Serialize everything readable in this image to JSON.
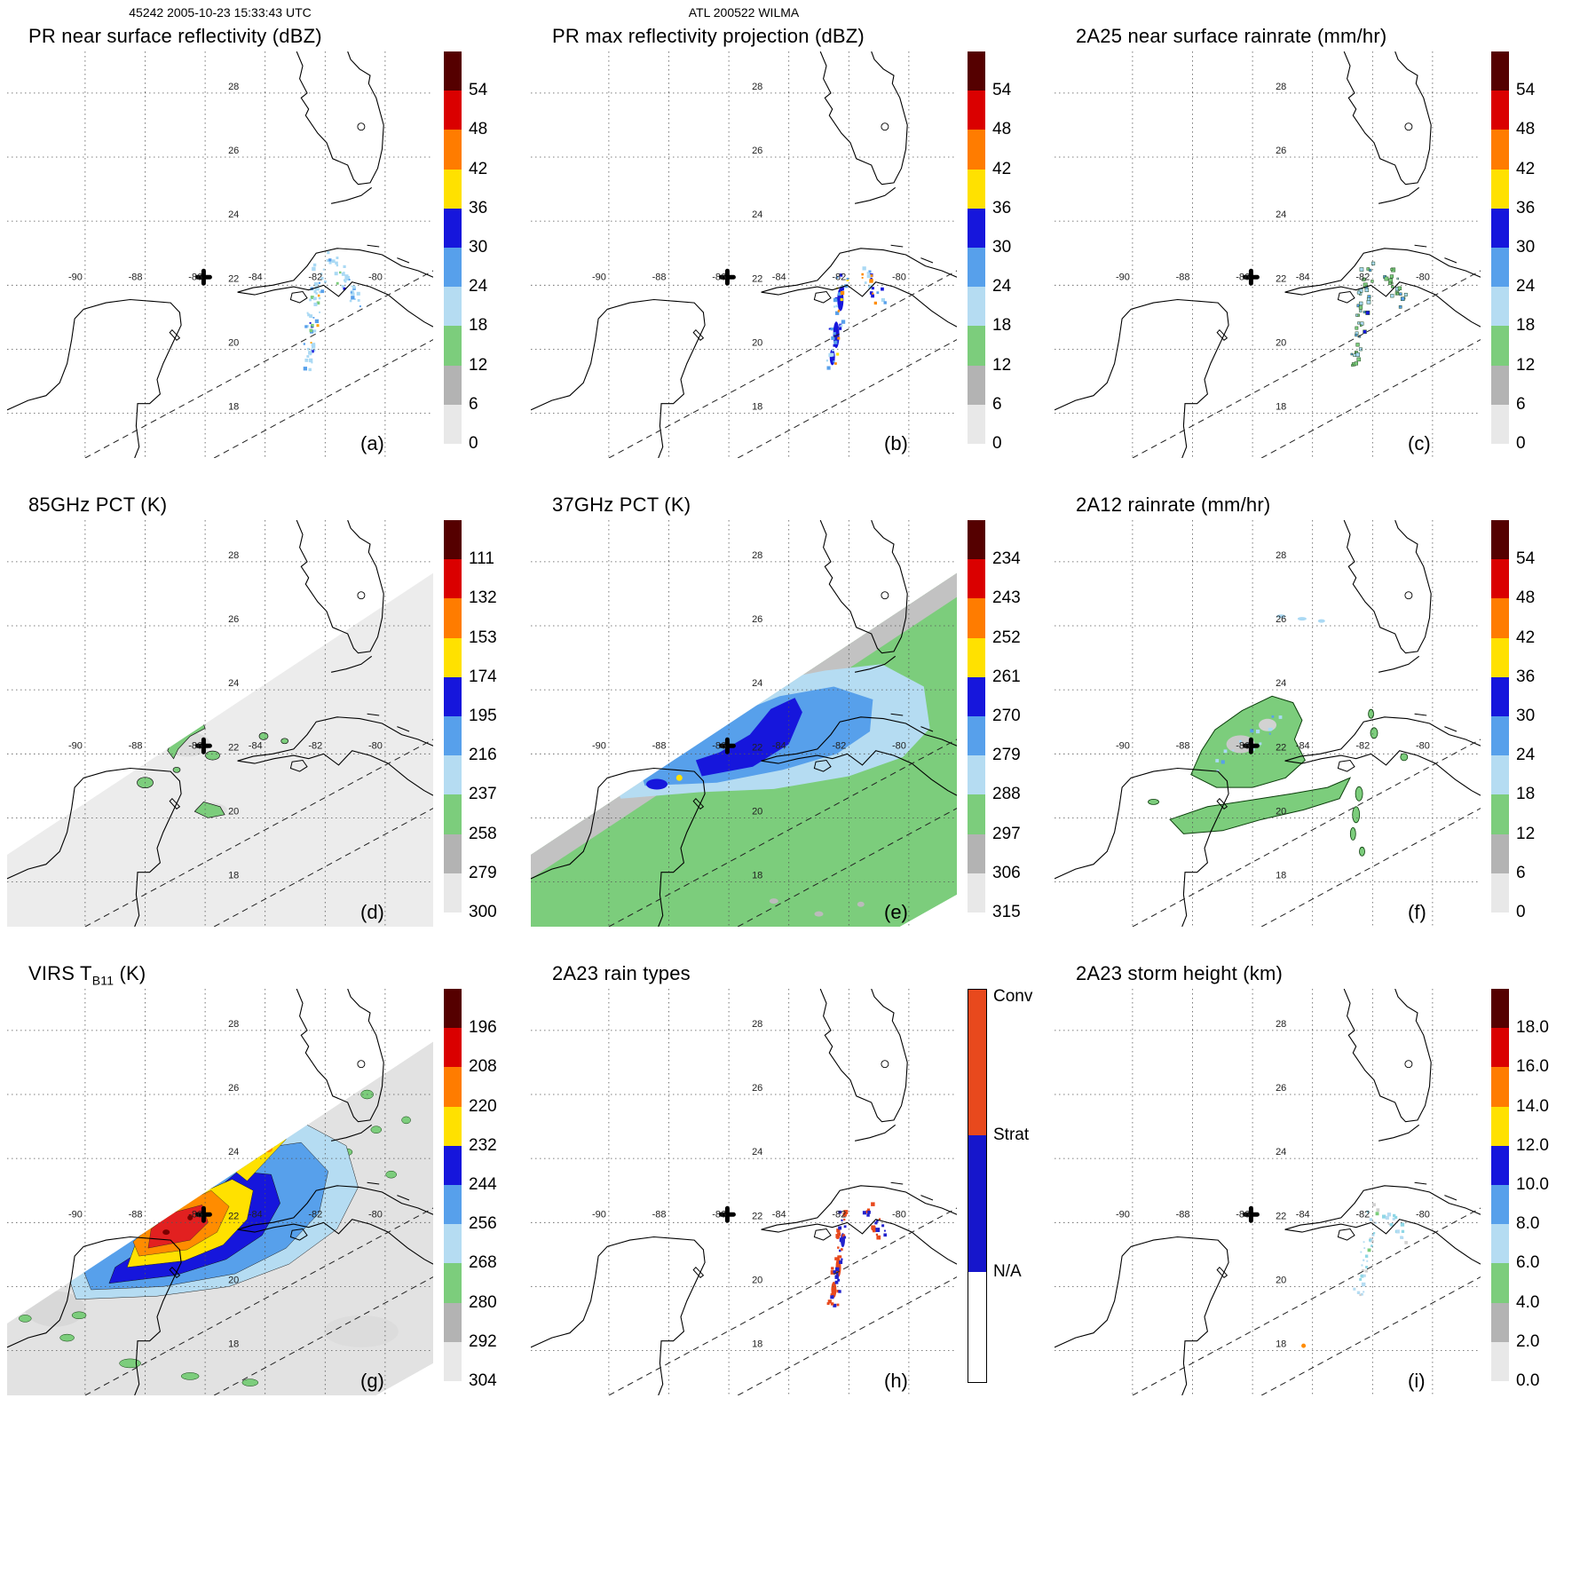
{
  "header": {
    "scan": "45242 2005-10-23 15:33:43 UTC",
    "storm": "ATL 200522 WILMA"
  },
  "map": {
    "lon_labels": [
      "-90",
      "-88",
      "-86",
      "-84",
      "-82",
      "-80"
    ],
    "grid_lons": [
      -90,
      -88,
      -86,
      -84,
      -82,
      -80
    ],
    "lat_labels": [
      "28",
      "26",
      "24",
      "22",
      "20",
      "18"
    ],
    "grid_lats": [
      28,
      26,
      24,
      22,
      20,
      18
    ],
    "storm_center": {
      "lon": -86.05,
      "lat": 22.25
    },
    "extent": {
      "lon_min": -92.6,
      "lon_max": -78.4,
      "lat_min": 16.6,
      "lat_max": 29.3
    }
  },
  "palette": {
    "scale_top_to_bottom": [
      "#550000",
      "#da0000",
      "#ff7c00",
      "#ffe100",
      "#1616dc",
      "#57a0eb",
      "#b5dcf2",
      "#7ccd7c",
      "#b3b3b3",
      "#e8e8e8"
    ],
    "conv": "#e8491d",
    "strat": "#1616cc",
    "na": "#ffffff"
  },
  "panels": [
    {
      "letter": "(a)",
      "title": "PR near surface reflectivity (dBZ)",
      "colorbar": {
        "type": "scale",
        "ticks": [
          "54",
          "48",
          "42",
          "36",
          "30",
          "24",
          "18",
          "12",
          "6",
          "0"
        ],
        "colors": [
          "#550000",
          "#da0000",
          "#ff7c00",
          "#ffe100",
          "#1616dc",
          "#57a0eb",
          "#b5dcf2",
          "#7ccd7c",
          "#b3b3b3",
          "#e8e8e8"
        ]
      }
    },
    {
      "letter": "(b)",
      "title": "PR max reflectivity projection (dBZ)",
      "colorbar": {
        "type": "scale",
        "ticks": [
          "54",
          "48",
          "42",
          "36",
          "30",
          "24",
          "18",
          "12",
          "6",
          "0"
        ],
        "colors": [
          "#550000",
          "#da0000",
          "#ff7c00",
          "#ffe100",
          "#1616dc",
          "#57a0eb",
          "#b5dcf2",
          "#7ccd7c",
          "#b3b3b3",
          "#e8e8e8"
        ]
      }
    },
    {
      "letter": "(c)",
      "title": "2A25 near surface rainrate (mm/hr)",
      "colorbar": {
        "type": "scale",
        "ticks": [
          "54",
          "48",
          "42",
          "36",
          "30",
          "24",
          "18",
          "12",
          "6",
          "0"
        ],
        "colors": [
          "#550000",
          "#da0000",
          "#ff7c00",
          "#ffe100",
          "#1616dc",
          "#57a0eb",
          "#b5dcf2",
          "#7ccd7c",
          "#b3b3b3",
          "#e8e8e8"
        ]
      }
    },
    {
      "letter": "(d)",
      "title": "85GHz PCT (K)",
      "colorbar": {
        "type": "scale",
        "ticks": [
          "111",
          "132",
          "153",
          "174",
          "195",
          "216",
          "237",
          "258",
          "279",
          "300"
        ],
        "colors": [
          "#550000",
          "#da0000",
          "#ff7c00",
          "#ffe100",
          "#1616dc",
          "#57a0eb",
          "#b5dcf2",
          "#7ccd7c",
          "#b3b3b3",
          "#e8e8e8"
        ]
      }
    },
    {
      "letter": "(e)",
      "title": "37GHz PCT (K)",
      "colorbar": {
        "type": "scale",
        "ticks": [
          "234",
          "243",
          "252",
          "261",
          "270",
          "279",
          "288",
          "297",
          "306",
          "315"
        ],
        "colors": [
          "#550000",
          "#da0000",
          "#ff7c00",
          "#ffe100",
          "#1616dc",
          "#57a0eb",
          "#b5dcf2",
          "#7ccd7c",
          "#b3b3b3",
          "#e8e8e8"
        ]
      }
    },
    {
      "letter": "(f)",
      "title": "2A12 rainrate (mm/hr)",
      "colorbar": {
        "type": "scale",
        "ticks": [
          "54",
          "48",
          "42",
          "36",
          "30",
          "24",
          "18",
          "12",
          "6",
          "0"
        ],
        "colors": [
          "#550000",
          "#da0000",
          "#ff7c00",
          "#ffe100",
          "#1616dc",
          "#57a0eb",
          "#b5dcf2",
          "#7ccd7c",
          "#b3b3b3",
          "#e8e8e8"
        ]
      }
    },
    {
      "letter": "(g)",
      "title": "VIRS TB11 (K)",
      "title_prefix": "VIRS T",
      "title_sub": "B11",
      "title_suffix": " (K)",
      "colorbar": {
        "type": "scale",
        "ticks": [
          "196",
          "208",
          "220",
          "232",
          "244",
          "256",
          "268",
          "280",
          "292",
          "304"
        ],
        "colors": [
          "#550000",
          "#da0000",
          "#ff7c00",
          "#ffe100",
          "#1616dc",
          "#57a0eb",
          "#b5dcf2",
          "#7ccd7c",
          "#b3b3b3",
          "#e8e8e8"
        ]
      }
    },
    {
      "letter": "(h)",
      "title": "2A23 rain types",
      "colorbar": {
        "type": "categories",
        "segments": [
          {
            "label": "Conv",
            "color": "#e8491d",
            "frac": 0.37
          },
          {
            "label": "Strat",
            "color": "#1616cc",
            "frac": 0.35
          },
          {
            "label": "N/A",
            "color": "#ffffff",
            "frac": 0.28
          }
        ]
      }
    },
    {
      "letter": "(i)",
      "title": "2A23 storm height (km)",
      "colorbar": {
        "type": "scale",
        "ticks": [
          "18.0",
          "16.0",
          "14.0",
          "12.0",
          "10.0",
          "8.0",
          "6.0",
          "4.0",
          "2.0",
          "0.0"
        ],
        "colors": [
          "#550000",
          "#da0000",
          "#ff7c00",
          "#ffe100",
          "#1616dc",
          "#57a0eb",
          "#b5dcf2",
          "#7ccd7c",
          "#b3b3b3",
          "#e8e8e8"
        ]
      }
    }
  ],
  "chart_data": [
    {
      "panel": "a",
      "type": "heatmap",
      "title": "PR near surface reflectivity",
      "units": "dBZ",
      "colorbar_ticks": [
        54,
        48,
        42,
        36,
        30,
        24,
        18,
        12,
        6,
        0
      ],
      "extent": {
        "lon": [
          -92.6,
          -78.4
        ],
        "lat": [
          16.6,
          29.3
        ]
      },
      "notes": "Scattered PR echoes, mostly 18-30 dBZ, in a broken rainband near 81-83W / 19-22.5N over and south of western Cuba; storm center cross at about 86W, 22.3N."
    },
    {
      "panel": "b",
      "type": "heatmap",
      "title": "PR max reflectivity projection",
      "units": "dBZ",
      "colorbar_ticks": [
        54,
        48,
        42,
        36,
        30,
        24,
        18,
        12,
        6,
        0
      ],
      "notes": "Same band as (a) with higher column-max values: elongated 30-40 dBZ blue streaks plus isolated 40+ dBZ (orange) cells near the Cuban coast."
    },
    {
      "panel": "c",
      "type": "heatmap",
      "title": "2A25 near surface rainrate",
      "units": "mm/hr",
      "colorbar_ticks": [
        54,
        48,
        42,
        36,
        30,
        24,
        18,
        12,
        6,
        0
      ],
      "notes": "Light near-surface rain rates (mostly under 12 mm/hr, green/pale blue) along the same rainband."
    },
    {
      "panel": "d",
      "type": "heatmap",
      "title": "85GHz PCT",
      "units": "K",
      "colorbar_ticks": [
        111,
        132,
        153,
        174,
        195,
        216,
        237,
        258,
        279,
        300
      ],
      "notes": "Wide TMI swath of ~260-300 K (light gray) with depressed PCT arcs (~237-258 K, green) curving around the storm center northeast of the Yucatan."
    },
    {
      "panel": "e",
      "type": "heatmap",
      "title": "37GHz PCT",
      "units": "K",
      "colorbar_ticks": [
        234,
        243,
        252,
        261,
        270,
        279,
        288,
        297,
        306,
        315
      ],
      "notes": "Warm ~288 K background (green) with a broad ring of lowered PCT (~261-279 K, blue shades) around the center; gray limb band along the swath edge; one yellow pixel near 87.7W / 21.3N."
    },
    {
      "panel": "f",
      "type": "heatmap",
      "title": "2A12 rainrate",
      "units": "mm/hr",
      "colorbar_ticks": [
        54,
        48,
        42,
        36,
        30,
        24,
        18,
        12,
        6,
        0
      ],
      "notes": "Broad light-rain shield (green, ~1-6 mm/hr) northeast of the Yucatan and in an elongated band south of Cuba, with small green cells along 82.5W and pale blue dashes near 26N."
    },
    {
      "panel": "g",
      "type": "heatmap",
      "title": "VIRS TB11",
      "units": "K",
      "colorbar_ticks": [
        196,
        208,
        220,
        232,
        244,
        256,
        268,
        280,
        292,
        304
      ],
      "notes": "Large cold cloud shield: coldest tops ~196-220 K (dark red/red/orange) around the center, yellow ring ~232 K, extensive 244-268 K (blue/green) anvil extending northeast over Cuba and Florida."
    },
    {
      "panel": "h",
      "type": "heatmap",
      "title": "2A23 rain types",
      "categories": [
        "Conv",
        "Strat",
        "N/A"
      ],
      "notes": "Along the PR swath, convective (red) cells embedded in stratiform (blue) rain within the Cuba rainband near 81-83W."
    },
    {
      "panel": "i",
      "type": "heatmap",
      "title": "2A23 storm height",
      "units": "km",
      "colorbar_ticks": [
        18.0,
        16.0,
        14.0,
        12.0,
        10.0,
        8.0,
        6.0,
        4.0,
        2.0,
        0.0
      ],
      "notes": "Storm heights mostly 4-10 km (pale blue/teal speckles) along the rainband east of the storm center."
    }
  ]
}
